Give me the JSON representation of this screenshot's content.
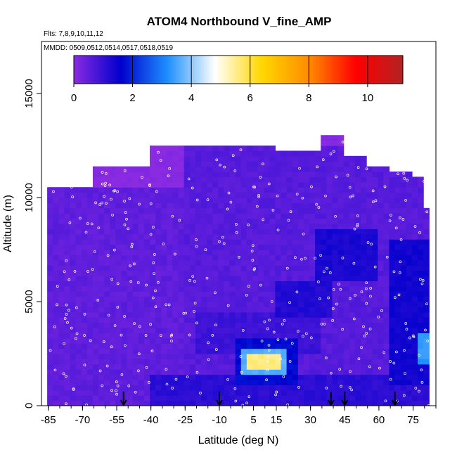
{
  "chart_data": {
    "type": "heatmap",
    "title": "ATOM4 Northbound V_fine_AMP",
    "subtitle_flights": "Flts: 7,8,9,10,11,12",
    "subtitle_dates": "MMDD: 0509,0512,0514,0517,0518,0519",
    "xlabel": "Latitude (deg N)",
    "ylabel": "Altitude (m)",
    "xlim": [
      -88,
      85
    ],
    "ylim": [
      0,
      17500
    ],
    "x_ticks": [
      -85,
      -70,
      -55,
      -40,
      -25,
      -10,
      5,
      15,
      30,
      45,
      60,
      75
    ],
    "x_tick_labels": [
      "-85",
      "-70",
      "-55",
      "-40",
      "-25",
      "-10",
      "5",
      "15",
      "30",
      "45",
      "60",
      "75"
    ],
    "y_ticks": [
      0,
      5000,
      10000,
      15000
    ],
    "y_tick_labels": [
      "0",
      "5000",
      "10000",
      "15000"
    ],
    "colorbar": {
      "min": 0,
      "max": 11.2,
      "ticks": [
        0,
        2,
        4,
        6,
        8,
        10
      ],
      "tick_labels": [
        "0",
        "2",
        "4",
        "6",
        "8",
        "10"
      ],
      "colors": [
        "#8a2be2",
        "#0000cd",
        "#1e90ff",
        "#ffffff",
        "#ffd700",
        "#ff8c00",
        "#ff0000",
        "#b22222"
      ]
    },
    "profile_markers_lat": [
      -52,
      -10,
      39,
      45,
      67
    ],
    "coverage_envelope": [
      [
        -85,
        10500
      ],
      [
        -75,
        10500
      ],
      [
        -65,
        11300
      ],
      [
        -52,
        11500
      ],
      [
        -40,
        12300
      ],
      [
        -20,
        12400
      ],
      [
        0,
        12400
      ],
      [
        15,
        12200
      ],
      [
        30,
        12200
      ],
      [
        35,
        12900
      ],
      [
        45,
        12000
      ],
      [
        55,
        11500
      ],
      [
        65,
        11200
      ],
      [
        75,
        10800
      ],
      [
        80,
        9500
      ],
      [
        82,
        9500
      ]
    ],
    "field_regions": [
      {
        "lat": [
          -86,
          -25
        ],
        "alt": [
          0,
          10500
        ],
        "value": 0.5
      },
      {
        "lat": [
          -25,
          82
        ],
        "alt": [
          0,
          12400
        ],
        "value": 0.6
      },
      {
        "lat": [
          -40,
          82
        ],
        "alt": [
          0,
          1500
        ],
        "value": 1.1
      },
      {
        "lat": [
          -20,
          35
        ],
        "alt": [
          2500,
          4500
        ],
        "value": 0.9
      },
      {
        "lat": [
          15,
          40
        ],
        "alt": [
          4200,
          6000
        ],
        "value": 1.2
      },
      {
        "lat": [
          32,
          60
        ],
        "alt": [
          6000,
          8500
        ],
        "value": 1.3
      },
      {
        "lat": [
          -3,
          25
        ],
        "alt": [
          1100,
          3200
        ],
        "value": 1.7
      },
      {
        "lat": [
          -1,
          20
        ],
        "alt": [
          1400,
          2800
        ],
        "value": 3.6
      },
      {
        "lat": [
          2,
          18
        ],
        "alt": [
          1700,
          2400
        ],
        "value": 5.6
      },
      {
        "lat": [
          65,
          82
        ],
        "alt": [
          1000,
          8000
        ],
        "value": 1.4
      },
      {
        "lat": [
          78,
          82
        ],
        "alt": [
          2000,
          3500
        ],
        "value": 3.3
      }
    ]
  }
}
